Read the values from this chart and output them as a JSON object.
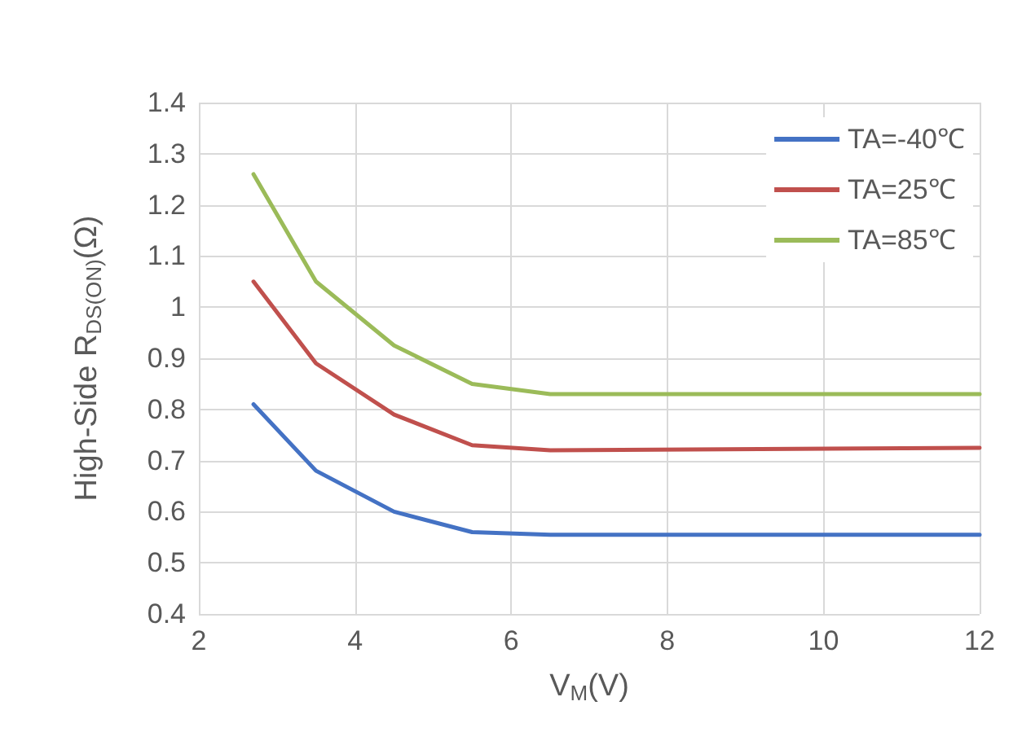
{
  "chart_data": {
    "type": "line",
    "xlabel": "V$_{M}$(V)",
    "ylabel": "High-Side R$_{DS(ON)}$(Ω)",
    "xlim": [
      2,
      12
    ],
    "xticks": [
      2,
      4,
      6,
      8,
      10,
      12
    ],
    "ylim": [
      0.4,
      1.4
    ],
    "yticks": [
      0.4,
      0.5,
      0.6,
      0.7,
      0.8,
      0.9,
      1,
      1.1,
      1.2,
      1.3,
      1.4
    ],
    "grid": true,
    "legend": "top right",
    "marker": "none",
    "line_style": "solid",
    "series": [
      {
        "name": "TA=-40℃",
        "color": "#4472c4",
        "x": [
          2.7,
          3.5,
          4.5,
          5.5,
          6.5,
          12
        ],
        "values": [
          0.81,
          0.68,
          0.6,
          0.56,
          0.555,
          0.555
        ]
      },
      {
        "name": "TA=25℃",
        "color": "#c0504d",
        "x": [
          2.7,
          3.5,
          4.5,
          5.5,
          6.5,
          12
        ],
        "values": [
          1.05,
          0.89,
          0.79,
          0.73,
          0.72,
          0.725
        ]
      },
      {
        "name": "TA=85℃",
        "color": "#9bbb59",
        "x": [
          2.7,
          3.5,
          4.5,
          5.5,
          6.5,
          12
        ],
        "values": [
          1.26,
          1.05,
          0.925,
          0.85,
          0.83,
          0.83
        ]
      }
    ]
  }
}
